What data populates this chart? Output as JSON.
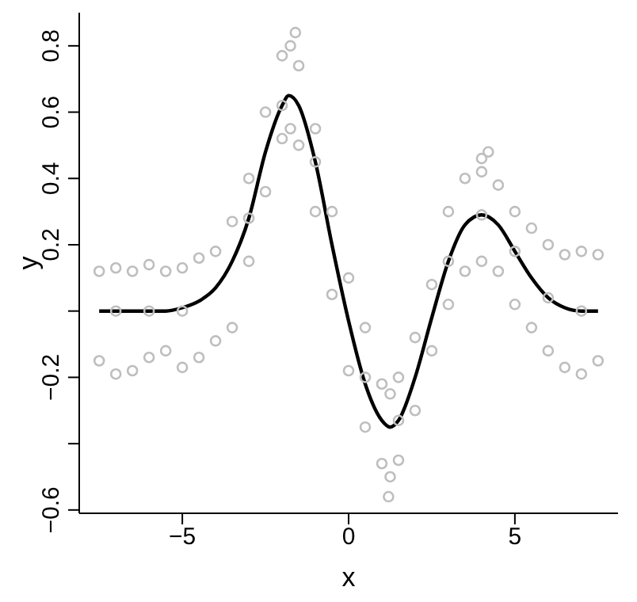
{
  "chart_data": {
    "type": "scatter",
    "xlabel": "x",
    "ylabel": "y",
    "xlim": [
      -8.1,
      8.1
    ],
    "ylim": [
      -0.61,
      0.9
    ],
    "xticks": [
      -5,
      0,
      5
    ],
    "yticks": [
      {
        "value": -0.6,
        "label": "−0.6"
      },
      {
        "value": -0.4,
        "label": null
      },
      {
        "value": -0.2,
        "label": "−0.2"
      },
      {
        "value": 0,
        "label": null
      },
      {
        "value": 0.2,
        "label": "0.2"
      },
      {
        "value": 0.4,
        "label": "0.4"
      },
      {
        "value": 0.6,
        "label": "0.6"
      },
      {
        "value": 0.8,
        "label": "0.8"
      }
    ],
    "grid": false,
    "legend": false,
    "marker": "circle",
    "series": [
      {
        "color": "#bebebe",
        "x": [
          -7.5,
          -7.5,
          -7,
          -7,
          -6.5,
          -6.5,
          -6,
          -6,
          -5.5,
          -5.5,
          -5,
          -5,
          -4.5,
          -4.5,
          -4,
          -4,
          -3.5,
          -3.5,
          -3,
          -3,
          -2.5,
          -2.5,
          -2,
          -2,
          -1.75,
          -1.75,
          -1.5,
          -1.5,
          -1,
          -1,
          -0.5,
          -0.5,
          0,
          0,
          0.5,
          0.5,
          1,
          1,
          1.25,
          1.25,
          1.5,
          1.5,
          2,
          2,
          2.5,
          2.5,
          3,
          3,
          3.5,
          3.5,
          4,
          4,
          4.5,
          4.5,
          5,
          5,
          5.5,
          5.5,
          6,
          6,
          6.5,
          6.5,
          7,
          7,
          7.5,
          7.5,
          -1.6,
          4.2,
          4,
          1.2,
          -7,
          -6,
          -5,
          -3,
          -2,
          -1,
          0.5,
          1.5,
          3,
          4,
          5,
          6,
          7
        ],
        "values": [
          0.12,
          -0.15,
          0.13,
          -0.19,
          0.12,
          -0.18,
          0.14,
          -0.14,
          0.12,
          -0.12,
          0.13,
          -0.17,
          0.16,
          -0.14,
          0.18,
          -0.09,
          0.27,
          -0.05,
          0.4,
          0.15,
          0.6,
          0.36,
          0.77,
          0.52,
          0.8,
          0.55,
          0.74,
          0.5,
          0.55,
          0.3,
          0.3,
          0.05,
          0.1,
          -0.18,
          -0.05,
          -0.35,
          -0.22,
          -0.46,
          -0.25,
          -0.5,
          -0.2,
          -0.45,
          -0.08,
          -0.3,
          0.08,
          -0.12,
          0.3,
          0.02,
          0.4,
          0.12,
          0.42,
          0.15,
          0.38,
          0.12,
          0.3,
          0.02,
          0.25,
          -0.05,
          0.2,
          -0.12,
          0.17,
          -0.17,
          0.18,
          -0.19,
          0.17,
          -0.15,
          0.84,
          0.48,
          0.46,
          -0.56,
          0,
          0,
          0,
          0.28,
          0.62,
          0.45,
          -0.2,
          -0.33,
          0.15,
          0.29,
          0.18,
          0.04,
          0
        ]
      },
      {
        "type": "line",
        "color": "#000000",
        "marker": "none",
        "line_style": "solid",
        "x": [
          -7.5,
          -7,
          -6.5,
          -6,
          -5.5,
          -5,
          -4.5,
          -4,
          -3.5,
          -3,
          -2.5,
          -2,
          -1.8,
          -1.5,
          -1,
          -0.5,
          0,
          0.5,
          1,
          1.25,
          1.5,
          2,
          2.5,
          3,
          3.5,
          4,
          4.5,
          5,
          5.5,
          6,
          6.5,
          7,
          7.5
        ],
        "values": [
          0,
          0,
          0,
          0,
          0,
          0.01,
          0.03,
          0.07,
          0.15,
          0.28,
          0.48,
          0.62,
          0.65,
          0.62,
          0.45,
          0.2,
          -0.03,
          -0.22,
          -0.33,
          -0.35,
          -0.33,
          -0.2,
          -0.02,
          0.15,
          0.26,
          0.29,
          0.26,
          0.18,
          0.1,
          0.04,
          0.01,
          0,
          0
        ]
      }
    ]
  }
}
